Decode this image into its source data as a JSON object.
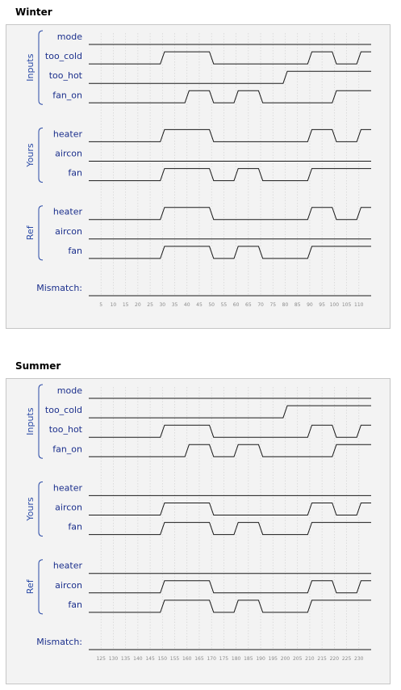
{
  "panels": [
    {
      "title": "Winter",
      "groups": [
        "Inputs",
        "Yours",
        "Ref"
      ],
      "signals": [
        {
          "name": "mode",
          "group": 0,
          "wave": [
            [
              0,
              0
            ]
          ]
        },
        {
          "name": "too_cold",
          "group": 0,
          "wave": [
            [
              0,
              0
            ],
            [
              30,
              1
            ],
            [
              50,
              0
            ],
            [
              90,
              1
            ],
            [
              100,
              0
            ],
            [
              110,
              1
            ]
          ]
        },
        {
          "name": "too_hot",
          "group": 0,
          "wave": [
            [
              0,
              0
            ],
            [
              80,
              1
            ]
          ]
        },
        {
          "name": "fan_on",
          "group": 0,
          "wave": [
            [
              0,
              0
            ],
            [
              40,
              1
            ],
            [
              50,
              0
            ],
            [
              60,
              1
            ],
            [
              70,
              0
            ],
            [
              100,
              1
            ]
          ]
        },
        {
          "name": "heater",
          "group": 1,
          "wave": [
            [
              0,
              0
            ],
            [
              30,
              1
            ],
            [
              50,
              0
            ],
            [
              90,
              1
            ],
            [
              100,
              0
            ],
            [
              110,
              1
            ]
          ]
        },
        {
          "name": "aircon",
          "group": 1,
          "wave": [
            [
              0,
              0
            ]
          ]
        },
        {
          "name": "fan",
          "group": 1,
          "wave": [
            [
              0,
              0
            ],
            [
              30,
              1
            ],
            [
              50,
              0
            ],
            [
              60,
              1
            ],
            [
              70,
              0
            ],
            [
              90,
              1
            ]
          ]
        },
        {
          "name": "heater",
          "group": 2,
          "wave": [
            [
              0,
              0
            ],
            [
              30,
              1
            ],
            [
              50,
              0
            ],
            [
              90,
              1
            ],
            [
              100,
              0
            ],
            [
              110,
              1
            ]
          ]
        },
        {
          "name": "aircon",
          "group": 2,
          "wave": [
            [
              0,
              0
            ]
          ]
        },
        {
          "name": "fan",
          "group": 2,
          "wave": [
            [
              0,
              0
            ],
            [
              30,
              1
            ],
            [
              50,
              0
            ],
            [
              60,
              1
            ],
            [
              70,
              0
            ],
            [
              90,
              1
            ]
          ]
        }
      ],
      "mismatch_label": "Mismatch:",
      "t_start": 0,
      "t_end": 115,
      "tick_step": 5,
      "tick_labels": [
        "5",
        "10",
        "15",
        "20",
        "25",
        "30",
        "35",
        "40",
        "45",
        "50",
        "55",
        "60",
        "65",
        "70",
        "75",
        "80",
        "85",
        "90",
        "95",
        "100",
        "105",
        "110"
      ]
    },
    {
      "title": "Summer",
      "groups": [
        "Inputs",
        "Yours",
        "Ref"
      ],
      "signals": [
        {
          "name": "mode",
          "group": 0,
          "wave": [
            [
              120,
              0
            ]
          ]
        },
        {
          "name": "too_cold",
          "group": 0,
          "wave": [
            [
              120,
              0
            ],
            [
              200,
              1
            ]
          ]
        },
        {
          "name": "too_hot",
          "group": 0,
          "wave": [
            [
              120,
              0
            ],
            [
              150,
              1
            ],
            [
              170,
              0
            ],
            [
              210,
              1
            ],
            [
              220,
              0
            ],
            [
              230,
              1
            ]
          ]
        },
        {
          "name": "fan_on",
          "group": 0,
          "wave": [
            [
              120,
              0
            ],
            [
              160,
              1
            ],
            [
              170,
              0
            ],
            [
              180,
              1
            ],
            [
              190,
              0
            ],
            [
              220,
              1
            ]
          ]
        },
        {
          "name": "heater",
          "group": 1,
          "wave": [
            [
              120,
              0
            ]
          ]
        },
        {
          "name": "aircon",
          "group": 1,
          "wave": [
            [
              120,
              0
            ],
            [
              150,
              1
            ],
            [
              170,
              0
            ],
            [
              210,
              1
            ],
            [
              220,
              0
            ],
            [
              230,
              1
            ]
          ]
        },
        {
          "name": "fan",
          "group": 1,
          "wave": [
            [
              120,
              0
            ],
            [
              150,
              1
            ],
            [
              170,
              0
            ],
            [
              180,
              1
            ],
            [
              190,
              0
            ],
            [
              210,
              1
            ]
          ]
        },
        {
          "name": "heater",
          "group": 2,
          "wave": [
            [
              120,
              0
            ]
          ]
        },
        {
          "name": "aircon",
          "group": 2,
          "wave": [
            [
              120,
              0
            ],
            [
              150,
              1
            ],
            [
              170,
              0
            ],
            [
              210,
              1
            ],
            [
              220,
              0
            ],
            [
              230,
              1
            ]
          ]
        },
        {
          "name": "fan",
          "group": 2,
          "wave": [
            [
              120,
              0
            ],
            [
              150,
              1
            ],
            [
              170,
              0
            ],
            [
              180,
              1
            ],
            [
              190,
              0
            ],
            [
              210,
              1
            ]
          ]
        }
      ],
      "mismatch_label": "Mismatch:",
      "t_start": 120,
      "t_end": 235,
      "tick_step": 5,
      "tick_labels": [
        "125",
        "130",
        "135",
        "140",
        "145",
        "150",
        "155",
        "160",
        "165",
        "170",
        "175",
        "180",
        "185",
        "190",
        "195",
        "200",
        "205",
        "210",
        "215",
        "220",
        "225",
        "230"
      ]
    }
  ]
}
